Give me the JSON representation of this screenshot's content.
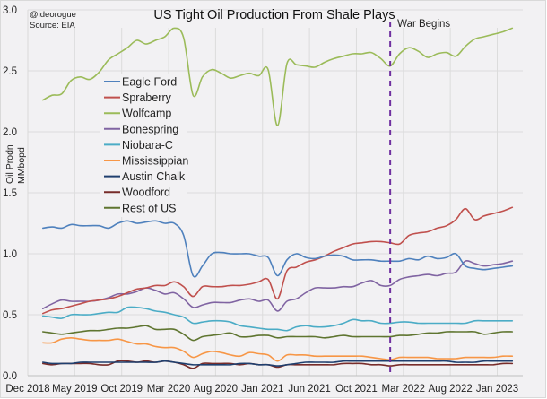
{
  "chart_data": {
    "type": "line",
    "title": "US Tight Oil Production From Shale Plays",
    "credit": "@ideorogue",
    "source": "Source: EIA",
    "ylabel_lines": [
      "Oil Prodn",
      "MMbopd"
    ],
    "xlabel": "",
    "ylim": [
      0.0,
      3.0
    ],
    "y_ticks": [
      "0.0",
      "0.5",
      "1.0",
      "1.5",
      "2.0",
      "2.5",
      "3.0"
    ],
    "x_ticks": [
      "Dec 2018",
      "May 2019",
      "Oct 2019",
      "Mar 2020",
      "Aug 2020",
      "Jan 2021",
      "Jun 2021",
      "Oct 2021",
      "Mar 2022",
      "Aug 2022",
      "Jan 2023"
    ],
    "grid": true,
    "legend_position": "upper-left inside plot",
    "annotation": {
      "label": "War Begins",
      "x": "Feb 2022",
      "color": "#7030a0",
      "style": "dashed"
    },
    "x": [
      "Jan 2019",
      "Feb 2019",
      "Mar 2019",
      "Apr 2019",
      "May 2019",
      "Jun 2019",
      "Jul 2019",
      "Aug 2019",
      "Sep 2019",
      "Oct 2019",
      "Nov 2019",
      "Dec 2019",
      "Jan 2020",
      "Feb 2020",
      "Mar 2020",
      "Apr 2020",
      "May 2020",
      "Jun 2020",
      "Jul 2020",
      "Aug 2020",
      "Sep 2020",
      "Oct 2020",
      "Nov 2020",
      "Dec 2020",
      "Jan 2021",
      "Feb 2021",
      "Mar 2021",
      "Apr 2021",
      "May 2021",
      "Jun 2021",
      "Jul 2021",
      "Aug 2021",
      "Sep 2021",
      "Oct 2021",
      "Nov 2021",
      "Dec 2021",
      "Jan 2022",
      "Feb 2022",
      "Mar 2022",
      "Apr 2022",
      "May 2022",
      "Jun 2022",
      "Jul 2022",
      "Aug 2022",
      "Sep 2022",
      "Oct 2022",
      "Nov 2022",
      "Dec 2022",
      "Jan 2023",
      "Feb 2023",
      "Mar 2023"
    ],
    "series": [
      {
        "name": "Eagle Ford",
        "color": "#4f81bd",
        "values": [
          1.21,
          1.22,
          1.21,
          1.24,
          1.23,
          1.23,
          1.23,
          1.21,
          1.25,
          1.27,
          1.25,
          1.26,
          1.27,
          1.25,
          1.25,
          1.15,
          0.82,
          0.9,
          1.0,
          1.01,
          1.0,
          1.0,
          1.0,
          0.98,
          0.97,
          0.82,
          0.95,
          1.0,
          0.97,
          0.96,
          0.98,
          0.99,
          0.98,
          0.95,
          0.95,
          0.95,
          0.94,
          0.94,
          0.94,
          0.96,
          0.95,
          0.98,
          0.96,
          0.97,
          1.0,
          0.9,
          0.88,
          0.87,
          0.88,
          0.89,
          0.9
        ]
      },
      {
        "name": "Spraberry",
        "color": "#c0504d",
        "values": [
          0.51,
          0.54,
          0.55,
          0.57,
          0.59,
          0.61,
          0.62,
          0.63,
          0.65,
          0.68,
          0.71,
          0.72,
          0.74,
          0.74,
          0.77,
          0.73,
          0.65,
          0.73,
          0.73,
          0.73,
          0.74,
          0.74,
          0.75,
          0.77,
          0.79,
          0.63,
          0.86,
          0.89,
          0.93,
          0.95,
          0.98,
          1.02,
          1.05,
          1.08,
          1.09,
          1.1,
          1.1,
          1.09,
          1.08,
          1.15,
          1.17,
          1.18,
          1.21,
          1.23,
          1.28,
          1.37,
          1.28,
          1.31,
          1.33,
          1.35,
          1.38
        ]
      },
      {
        "name": "Wolfcamp",
        "color": "#9bbb59",
        "values": [
          2.26,
          2.3,
          2.31,
          2.42,
          2.45,
          2.43,
          2.49,
          2.59,
          2.64,
          2.69,
          2.75,
          2.72,
          2.75,
          2.78,
          2.85,
          2.77,
          2.3,
          2.45,
          2.51,
          2.48,
          2.44,
          2.46,
          2.48,
          2.46,
          2.51,
          2.05,
          2.56,
          2.55,
          2.54,
          2.53,
          2.57,
          2.6,
          2.62,
          2.64,
          2.64,
          2.65,
          2.6,
          2.54,
          2.64,
          2.69,
          2.66,
          2.61,
          2.64,
          2.65,
          2.62,
          2.7,
          2.76,
          2.78,
          2.8,
          2.82,
          2.85
        ]
      },
      {
        "name": "Bonespring",
        "color": "#8064a2",
        "values": [
          0.55,
          0.59,
          0.62,
          0.61,
          0.61,
          0.61,
          0.62,
          0.64,
          0.67,
          0.67,
          0.69,
          0.72,
          0.7,
          0.67,
          0.68,
          0.63,
          0.56,
          0.58,
          0.6,
          0.6,
          0.6,
          0.62,
          0.63,
          0.61,
          0.62,
          0.53,
          0.61,
          0.63,
          0.68,
          0.72,
          0.72,
          0.72,
          0.73,
          0.73,
          0.76,
          0.78,
          0.74,
          0.74,
          0.79,
          0.81,
          0.82,
          0.83,
          0.82,
          0.84,
          0.85,
          0.94,
          0.92,
          0.9,
          0.91,
          0.92,
          0.94
        ]
      },
      {
        "name": "Niobara-C",
        "color": "#4bacc6",
        "values": [
          0.49,
          0.48,
          0.47,
          0.5,
          0.5,
          0.5,
          0.51,
          0.52,
          0.52,
          0.56,
          0.56,
          0.55,
          0.53,
          0.52,
          0.5,
          0.48,
          0.43,
          0.44,
          0.45,
          0.45,
          0.44,
          0.41,
          0.4,
          0.39,
          0.38,
          0.38,
          0.37,
          0.4,
          0.41,
          0.4,
          0.4,
          0.41,
          0.43,
          0.46,
          0.45,
          0.45,
          0.43,
          0.43,
          0.44,
          0.44,
          0.43,
          0.43,
          0.43,
          0.43,
          0.43,
          0.43,
          0.45,
          0.45,
          0.45,
          0.45,
          0.45
        ]
      },
      {
        "name": "Mississippian",
        "color": "#f79646",
        "values": [
          0.27,
          0.27,
          0.3,
          0.31,
          0.3,
          0.29,
          0.29,
          0.29,
          0.3,
          0.28,
          0.26,
          0.26,
          0.24,
          0.23,
          0.23,
          0.2,
          0.15,
          0.18,
          0.2,
          0.19,
          0.17,
          0.16,
          0.19,
          0.18,
          0.17,
          0.12,
          0.17,
          0.17,
          0.17,
          0.16,
          0.16,
          0.16,
          0.16,
          0.16,
          0.16,
          0.15,
          0.14,
          0.13,
          0.15,
          0.15,
          0.15,
          0.15,
          0.14,
          0.14,
          0.14,
          0.15,
          0.15,
          0.15,
          0.15,
          0.16,
          0.16
        ]
      },
      {
        "name": "Austin Chalk",
        "color": "#1f3f6e",
        "values": [
          0.11,
          0.1,
          0.1,
          0.1,
          0.11,
          0.11,
          0.11,
          0.11,
          0.11,
          0.11,
          0.11,
          0.11,
          0.11,
          0.12,
          0.11,
          0.1,
          0.09,
          0.09,
          0.09,
          0.09,
          0.09,
          0.1,
          0.1,
          0.09,
          0.09,
          0.08,
          0.09,
          0.1,
          0.11,
          0.11,
          0.11,
          0.11,
          0.12,
          0.12,
          0.12,
          0.12,
          0.12,
          0.12,
          0.12,
          0.12,
          0.12,
          0.12,
          0.12,
          0.12,
          0.11,
          0.11,
          0.11,
          0.12,
          0.12,
          0.12,
          0.12
        ]
      },
      {
        "name": "Woodford",
        "color": "#772c2a",
        "values": [
          0.1,
          0.09,
          0.1,
          0.1,
          0.1,
          0.1,
          0.09,
          0.09,
          0.12,
          0.12,
          0.11,
          0.12,
          0.11,
          0.12,
          0.11,
          0.09,
          0.06,
          0.1,
          0.1,
          0.1,
          0.1,
          0.09,
          0.1,
          0.09,
          0.09,
          0.07,
          0.09,
          0.09,
          0.09,
          0.09,
          0.09,
          0.09,
          0.1,
          0.1,
          0.1,
          0.09,
          0.09,
          0.08,
          0.09,
          0.09,
          0.09,
          0.09,
          0.09,
          0.09,
          0.09,
          0.09,
          0.09,
          0.09,
          0.09,
          0.1,
          0.1
        ]
      },
      {
        "name": "Rest of US",
        "color": "#5f7530",
        "values": [
          0.36,
          0.35,
          0.34,
          0.35,
          0.36,
          0.37,
          0.37,
          0.38,
          0.39,
          0.39,
          0.4,
          0.41,
          0.38,
          0.38,
          0.38,
          0.34,
          0.29,
          0.32,
          0.33,
          0.34,
          0.35,
          0.32,
          0.32,
          0.33,
          0.33,
          0.31,
          0.32,
          0.32,
          0.32,
          0.32,
          0.31,
          0.32,
          0.33,
          0.32,
          0.32,
          0.32,
          0.32,
          0.32,
          0.33,
          0.33,
          0.34,
          0.35,
          0.35,
          0.36,
          0.36,
          0.36,
          0.36,
          0.34,
          0.35,
          0.36,
          0.36
        ]
      }
    ]
  }
}
